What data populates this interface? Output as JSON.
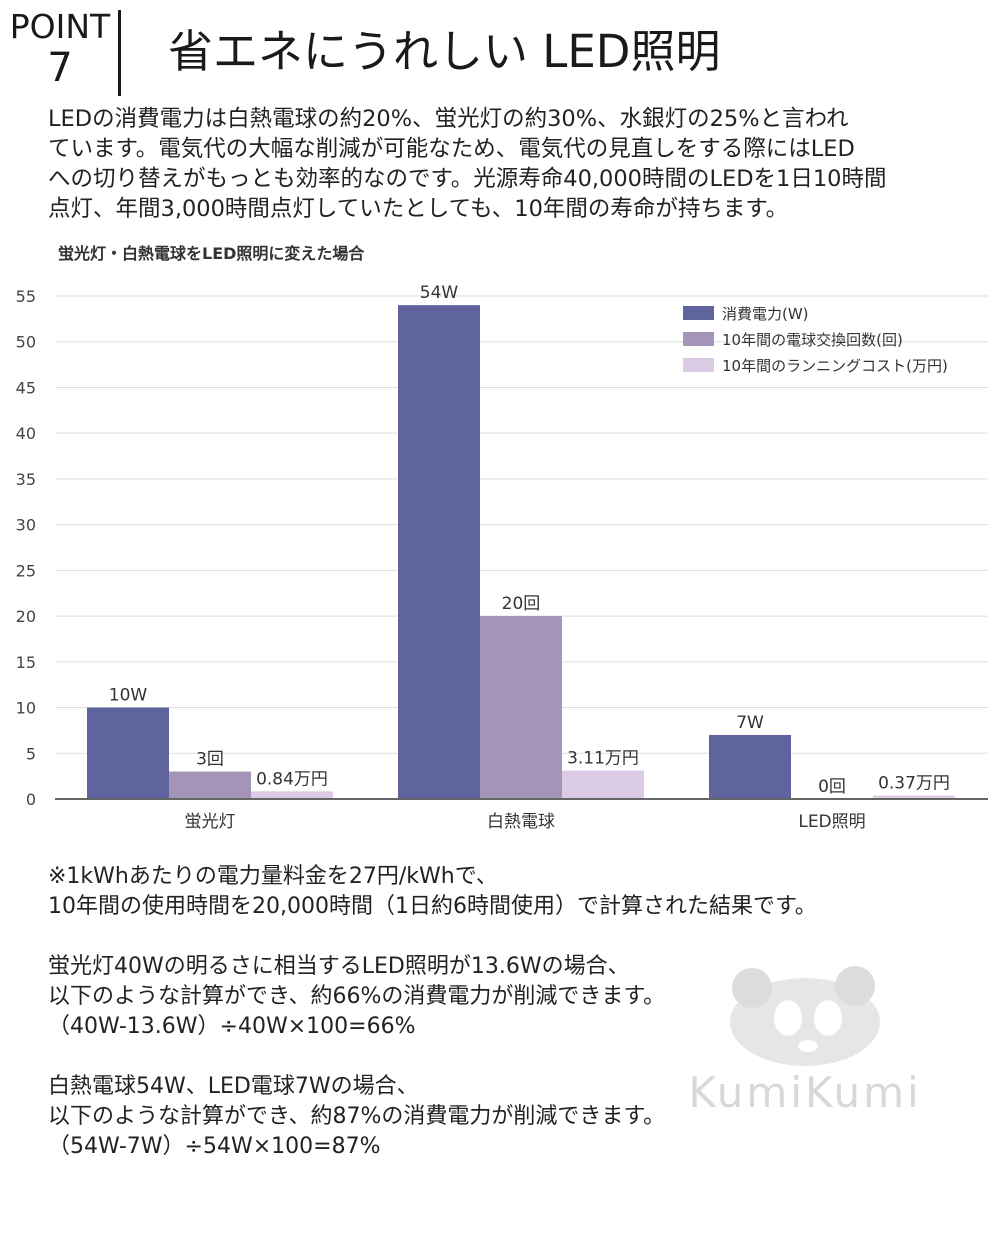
{
  "header": {
    "point_label": "POINT",
    "point_number": "7",
    "title": "省エネにうれしい LED照明"
  },
  "intro": {
    "lines": [
      "LEDの消費電力は白熱電球の約20%、蛍光灯の約30%、水銀灯の25%と言われ",
      "ています。電気代の大幅な削減が可能なため、電気代の見直しをする際にはLED",
      "への切り替えがもっとも効率的なのです。光源寿命40,000時間のLEDを1日10時間",
      "点灯、年間3,000時間点灯していたとしても、10年間の寿命が持ちます。"
    ]
  },
  "chart_data": {
    "type": "bar",
    "title": "蛍光灯・白熱電球をLED照明に変えた場合",
    "categories": [
      "蛍光灯",
      "白熱電球",
      "LED照明"
    ],
    "series": [
      {
        "name": "消費電力(W)",
        "values": [
          10,
          54,
          7
        ],
        "labels": [
          "10W",
          "54W",
          "7W"
        ],
        "color": "#5f649e"
      },
      {
        "name": "10年間の電球交換回数(回)",
        "values": [
          3,
          20,
          0
        ],
        "labels": [
          "3回",
          "20回",
          "0回"
        ],
        "color": "#a394b8"
      },
      {
        "name": "10年間のランニングコスト(万円)",
        "values": [
          0.84,
          3.11,
          0.37
        ],
        "labels": [
          "0.84万円",
          "3.11万円",
          "0.37万円"
        ],
        "color": "#dccbe5"
      }
    ],
    "ylim": [
      0,
      55
    ],
    "yticks": [
      0,
      5,
      10,
      15,
      20,
      25,
      30,
      35,
      40,
      45,
      50,
      55
    ],
    "grid": true,
    "legend_position": "top-right",
    "xlabel": "",
    "ylabel": ""
  },
  "notes": {
    "lines": [
      "※1kWhあたりの電力量料金を27円/kWhで、",
      "10年間の使用時間を20,000時間（1日約6時間使用）で計算された結果です。",
      "",
      "蛍光灯40Wの明るさに相当するLED照明が13.6Wの場合、",
      "以下のような計算ができ、約66%の消費電力が削減できます。",
      "（40W-13.6W）÷40W×100=66%",
      "",
      "白熱電球54W、LED電球7Wの場合、",
      "以下のような計算ができ、約87%の消費電力が削減できます。",
      "（54W-7W）÷54W×100=87%"
    ]
  },
  "watermark": {
    "text": "KumiKumi",
    "icon": "panda-icon"
  }
}
